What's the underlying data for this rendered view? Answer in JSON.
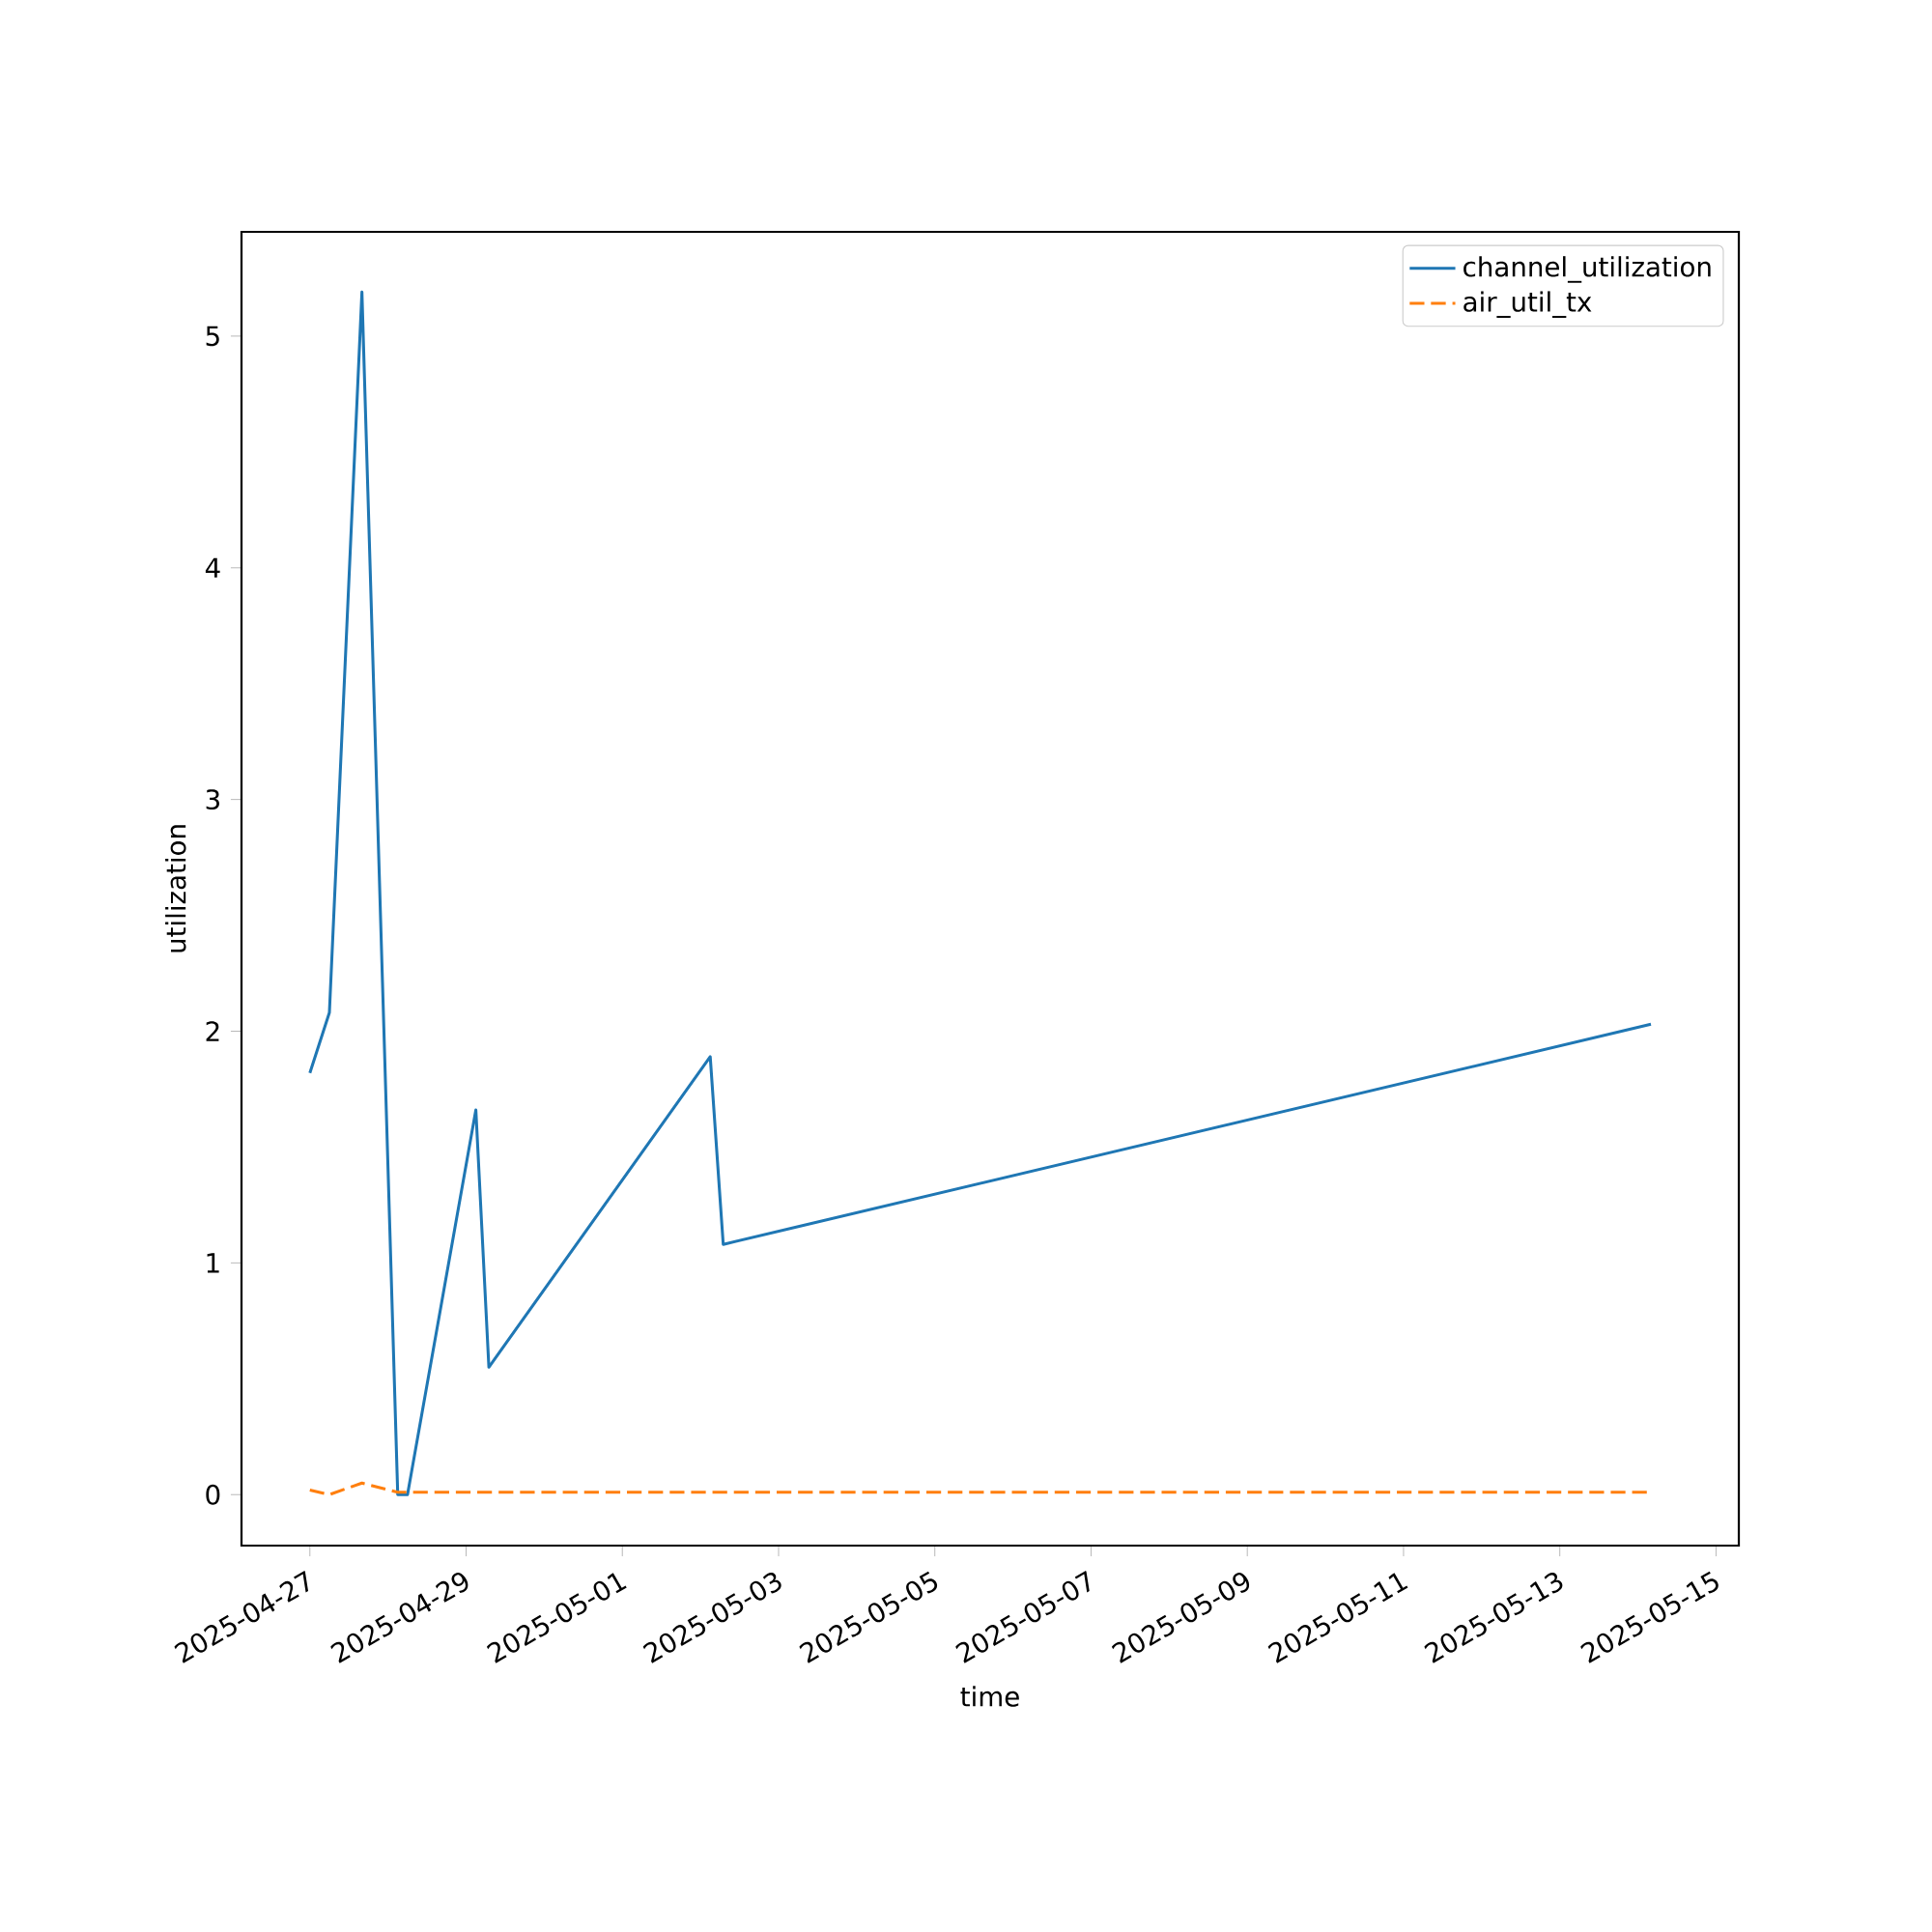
{
  "chart_data": {
    "type": "line",
    "xlabel": "time",
    "ylabel": "utilization",
    "x": [
      "2025-04-27T00:00",
      "2025-04-27T06:00",
      "2025-04-27T16:00",
      "2025-04-28T03:00",
      "2025-04-28T06:00",
      "2025-04-29T03:00",
      "2025-04-29T07:00",
      "2025-05-02T03:00",
      "2025-05-02T07:00",
      "2025-05-14T04:00"
    ],
    "series": [
      {
        "name": "channel_utilization",
        "color": "#1f77b4",
        "line_style": "solid",
        "values": [
          1.82,
          2.08,
          5.19,
          0,
          0,
          1.66,
          0.55,
          1.89,
          1.08,
          2.03
        ]
      },
      {
        "name": "air_util_tx",
        "color": "#ff7f0e",
        "line_style": "dashed",
        "values": [
          0.02,
          0.0,
          0.05,
          0.01,
          0.01,
          0.01,
          0.01,
          0.01,
          0.01,
          0.01
        ]
      }
    ],
    "xlim": [
      "2025-04-26T03:00",
      "2025-05-15T07:00"
    ],
    "xticks": [
      "2025-04-27",
      "2025-04-29",
      "2025-05-01",
      "2025-05-03",
      "2025-05-05",
      "2025-05-07",
      "2025-05-09",
      "2025-05-11",
      "2025-05-13",
      "2025-05-15"
    ],
    "ylim": [
      -0.22,
      5.45
    ],
    "yticks": [
      0,
      1,
      2,
      3,
      4,
      5
    ],
    "legend": "top right"
  }
}
